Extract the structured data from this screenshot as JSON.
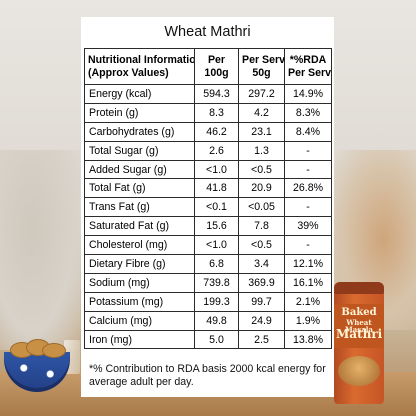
{
  "title": "Wheat Mathri",
  "table": {
    "headers": [
      {
        "line1": "Nutritional Information",
        "line2": "(Approx Values)"
      },
      {
        "line1": "Per",
        "line2": "100g"
      },
      {
        "line1": "Per Serve",
        "line2": "50g"
      },
      {
        "line1": "*%RDA",
        "line2": "Per Serve"
      }
    ],
    "rows": [
      {
        "name": "Energy (kcal)",
        "per100": "594.3",
        "serve": "297.2",
        "rda": "14.9%"
      },
      {
        "name": "Protein (g)",
        "per100": "8.3",
        "serve": "4.2",
        "rda": "8.3%"
      },
      {
        "name": "Carbohydrates (g)",
        "per100": "46.2",
        "serve": "23.1",
        "rda": "8.4%"
      },
      {
        "name": "Total Sugar (g)",
        "per100": "2.6",
        "serve": "1.3",
        "rda": "-"
      },
      {
        "name": "Added Sugar (g)",
        "per100": "<1.0",
        "serve": "<0.5",
        "rda": "-"
      },
      {
        "name": "Total Fat (g)",
        "per100": "41.8",
        "serve": "20.9",
        "rda": "26.8%"
      },
      {
        "name": "Trans Fat (g)",
        "per100": "<0.1",
        "serve": "<0.05",
        "rda": "-"
      },
      {
        "name": "Saturated Fat (g)",
        "per100": "15.6",
        "serve": "7.8",
        "rda": "39%"
      },
      {
        "name": "Cholesterol (mg)",
        "per100": "<1.0",
        "serve": "<0.5",
        "rda": "-"
      },
      {
        "name": "Dietary Fibre (g)",
        "per100": "6.8",
        "serve": "3.4",
        "rda": "12.1%"
      },
      {
        "name": "Sodium (mg)",
        "per100": "739.8",
        "serve": "369.9",
        "rda": "16.1%"
      },
      {
        "name": "Potassium (mg)",
        "per100": "199.3",
        "serve": "99.7",
        "rda": "2.1%"
      },
      {
        "name": "Calcium (mg)",
        "per100": "49.8",
        "serve": "24.9",
        "rda": "1.9%"
      },
      {
        "name": "Iron (mg)",
        "per100": "5.0",
        "serve": "2.5",
        "rda": "13.8%"
      }
    ]
  },
  "footnote": "*% Contribution to RDA basis 2000 kcal energy for average adult per day.",
  "product": {
    "line1": "Baked",
    "line2": "Wheat Masala",
    "line3": "Mathri"
  },
  "colors": {
    "card": "#ffffff",
    "can": "#d96a2f",
    "bowl": "#2e56a6"
  }
}
